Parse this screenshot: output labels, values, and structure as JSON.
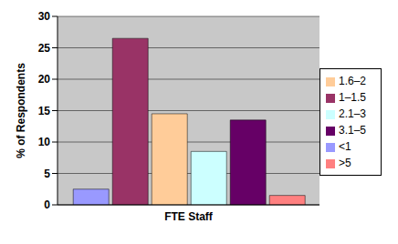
{
  "chart_data": {
    "type": "bar",
    "y_label": "% of Respondents",
    "categories": [
      "FTE Staff"
    ],
    "series": [
      {
        "name": "<1",
        "color": "#9999ff",
        "values": [
          2.5
        ]
      },
      {
        "name": "1–1.5",
        "color": "#993366",
        "values": [
          26.5
        ]
      },
      {
        "name": "1.6–2",
        "color": "#ffcc99",
        "values": [
          14.5
        ]
      },
      {
        "name": "2.1–3",
        "color": "#ccffff",
        "values": [
          8.5
        ]
      },
      {
        "name": "3.1–5",
        "color": "#660066",
        "values": [
          13.5
        ]
      },
      {
        "name": ">5",
        "color": "#ff8080",
        "values": [
          1.5
        ]
      }
    ],
    "ylim": [
      0,
      30
    ],
    "yticks": [
      0,
      5,
      10,
      15,
      20,
      25,
      30
    ],
    "grid": true,
    "legend": "right"
  }
}
